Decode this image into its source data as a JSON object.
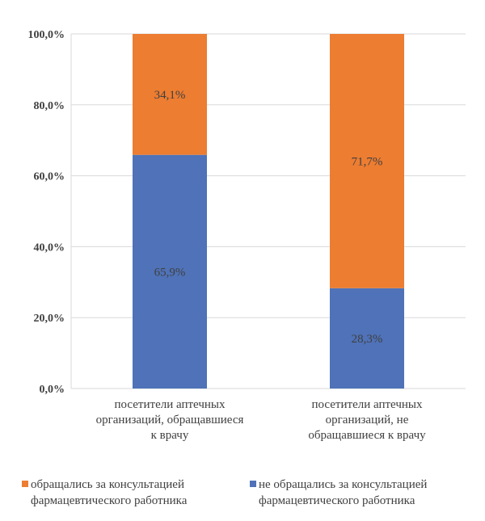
{
  "chart_data": {
    "type": "bar",
    "stacked": true,
    "categories": [
      "посетители аптечных\nорганизаций, обращавшиеся\nк врачу",
      "посетители аптечных\nорганизаций, не\nобращавшиеся к врачу"
    ],
    "series": [
      {
        "name": "не обращались за консультацией\nфармацевтического работника",
        "color": "#4f72b8",
        "values": [
          65.9,
          28.3
        ]
      },
      {
        "name": "обращались за консультацией\nфармацевтического работника",
        "color": "#ed7d31",
        "values": [
          34.1,
          71.7
        ]
      }
    ],
    "data_labels": [
      [
        "65,9%",
        "28,3%"
      ],
      [
        "34,1%",
        "71,7%"
      ]
    ],
    "ylim": [
      0,
      100
    ],
    "y_ticks": [
      0,
      20,
      40,
      60,
      80,
      100
    ],
    "y_tick_labels": [
      "0,0%",
      "20,0%",
      "40,0%",
      "60,0%",
      "80,0%",
      "100,0%"
    ],
    "grid": true,
    "gridline_color": "#d9d9d9",
    "legend_position": "bottom",
    "legend_order": [
      1,
      0
    ]
  }
}
